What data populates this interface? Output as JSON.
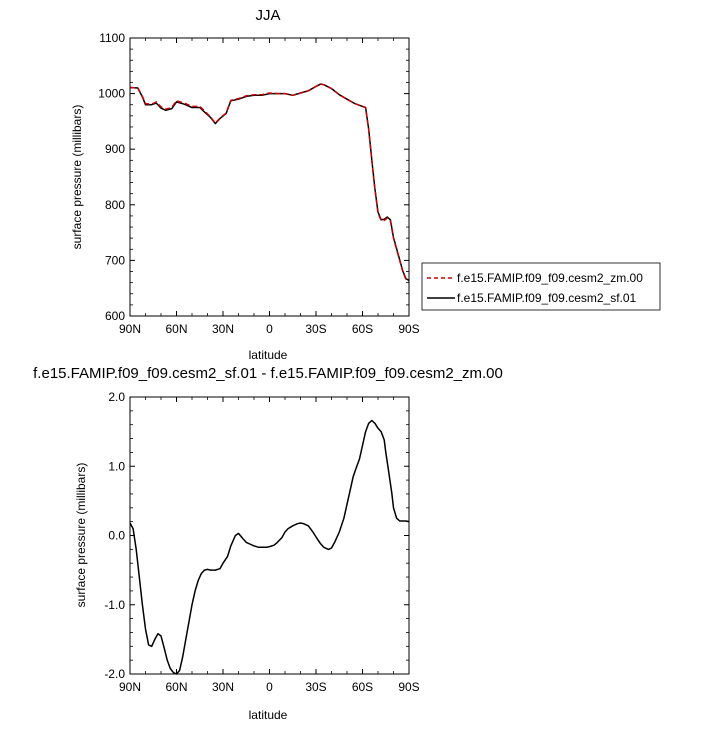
{
  "chart_data": [
    {
      "type": "line",
      "title": "JJA",
      "xlabel": "latitude",
      "ylabel": "surface pressure (millibars)",
      "xlim": [
        90,
        -90
      ],
      "ylim": [
        600,
        1100
      ],
      "x_ticks": [
        90,
        60,
        30,
        0,
        -30,
        -60,
        -90
      ],
      "x_tick_labels": [
        "90N",
        "60N",
        "30N",
        "0",
        "30S",
        "60S",
        "90S"
      ],
      "y_ticks": [
        600,
        700,
        800,
        900,
        1000,
        1100
      ],
      "y_tick_labels": [
        "600",
        "700",
        "800",
        "900",
        "1000",
        "1100"
      ],
      "grid": false,
      "legend_position": "right",
      "series": [
        {
          "name": "f.e15.FAMIP.f09_f09.cesm2_zm.00",
          "color": "#cc0000",
          "dash": "dashed",
          "x": [
            90,
            85,
            82,
            80,
            76,
            73,
            70,
            67,
            63,
            60,
            55,
            50,
            45,
            42,
            38,
            35,
            32,
            28,
            25,
            20,
            15,
            10,
            5,
            0,
            -5,
            -10,
            -15,
            -20,
            -25,
            -30,
            -33,
            -35,
            -40,
            -45,
            -50,
            -55,
            -60,
            -62,
            -64,
            -66,
            -68,
            -70,
            -72,
            -74,
            -76,
            -78,
            -80,
            -82,
            -84,
            -86,
            -88,
            -90
          ],
          "y": [
            1011,
            1010,
            995,
            982,
            981,
            985,
            976,
            972,
            975,
            987,
            983,
            977,
            977,
            969,
            958,
            947,
            956,
            965,
            988,
            991,
            996,
            998,
            998,
            1001,
            1000,
            1000,
            997,
            1001,
            1005,
            1013,
            1017,
            1016,
            1009,
            998,
            990,
            982,
            977,
            975,
            935,
            880,
            828,
            785,
            772,
            772,
            776,
            771,
            740,
            720,
            700,
            680,
            666,
            663
          ]
        },
        {
          "name": "f.e15.FAMIP.f09_f09.cesm2_sf.01",
          "color": "#000000",
          "dash": "solid",
          "x": [
            90,
            85,
            82,
            80,
            76,
            73,
            70,
            67,
            63,
            60,
            55,
            50,
            45,
            42,
            38,
            35,
            32,
            28,
            25,
            20,
            15,
            10,
            5,
            0,
            -5,
            -10,
            -15,
            -20,
            -25,
            -30,
            -33,
            -35,
            -40,
            -45,
            -50,
            -55,
            -60,
            -62,
            -64,
            -66,
            -68,
            -70,
            -72,
            -74,
            -76,
            -78,
            -80,
            -82,
            -84,
            -86,
            -88,
            -90
          ],
          "y": [
            1011,
            1010,
            994,
            980,
            980,
            983,
            974,
            970,
            973,
            985,
            981,
            975,
            975,
            967,
            957,
            946,
            955,
            964,
            987,
            990,
            995,
            997,
            997,
            1000,
            1000,
            1000,
            997,
            1001,
            1005,
            1013,
            1017,
            1016,
            1009,
            998,
            990,
            982,
            977,
            975,
            936,
            881,
            829,
            787,
            773,
            774,
            778,
            773,
            741,
            721,
            701,
            681,
            667,
            664
          ]
        }
      ]
    },
    {
      "type": "line",
      "title": "f.e15.FAMIP.f09_f09.cesm2_sf.01 - f.e15.FAMIP.f09_f09.cesm2_zm.00",
      "xlabel": "latitude",
      "ylabel": "surface pressure (millibars)",
      "xlim": [
        90,
        -90
      ],
      "ylim": [
        -2.0,
        2.0
      ],
      "x_ticks": [
        90,
        60,
        30,
        0,
        -30,
        -60,
        -90
      ],
      "x_tick_labels": [
        "90N",
        "60N",
        "30N",
        "0",
        "30S",
        "60S",
        "90S"
      ],
      "y_ticks": [
        -2.0,
        -1.0,
        0.0,
        1.0,
        2.0
      ],
      "y_tick_labels": [
        "-2.0",
        "-1.0",
        "0.0",
        "1.0",
        "2.0"
      ],
      "grid": false,
      "series": [
        {
          "color": "#000000",
          "dash": "solid",
          "x": [
            90,
            88,
            86,
            84,
            82,
            80,
            78,
            76,
            74,
            72,
            70,
            68,
            66,
            64,
            62,
            60,
            58,
            56,
            54,
            52,
            50,
            48,
            46,
            44,
            42,
            40,
            38,
            35,
            32,
            30,
            27,
            25,
            22,
            20,
            17,
            15,
            12,
            10,
            7,
            5,
            2,
            0,
            -3,
            -5,
            -8,
            -10,
            -12,
            -15,
            -18,
            -20,
            -22,
            -25,
            -28,
            -30,
            -33,
            -35,
            -38,
            -40,
            -42,
            -45,
            -48,
            -50,
            -52,
            -54,
            -56,
            -58,
            -60,
            -62,
            -64,
            -66,
            -68,
            -70,
            -72,
            -74,
            -75,
            -77,
            -79,
            -80,
            -82,
            -84,
            -86,
            -88,
            -90
          ],
          "y": [
            0.18,
            0.1,
            -0.2,
            -0.6,
            -1.0,
            -1.35,
            -1.58,
            -1.6,
            -1.5,
            -1.42,
            -1.45,
            -1.62,
            -1.8,
            -1.92,
            -1.98,
            -2.0,
            -1.95,
            -1.75,
            -1.5,
            -1.25,
            -1.0,
            -0.8,
            -0.65,
            -0.55,
            -0.5,
            -0.49,
            -0.5,
            -0.5,
            -0.48,
            -0.4,
            -0.3,
            -0.15,
            0.0,
            0.03,
            -0.05,
            -0.1,
            -0.13,
            -0.15,
            -0.17,
            -0.17,
            -0.17,
            -0.16,
            -0.14,
            -0.1,
            -0.03,
            0.05,
            0.1,
            0.14,
            0.17,
            0.18,
            0.17,
            0.14,
            0.05,
            -0.02,
            -0.12,
            -0.17,
            -0.2,
            -0.18,
            -0.1,
            0.05,
            0.25,
            0.45,
            0.65,
            0.85,
            0.98,
            1.1,
            1.3,
            1.5,
            1.62,
            1.66,
            1.62,
            1.55,
            1.5,
            1.38,
            1.2,
            0.9,
            0.6,
            0.4,
            0.25,
            0.21,
            0.21,
            0.21,
            0.2
          ]
        }
      ]
    }
  ]
}
